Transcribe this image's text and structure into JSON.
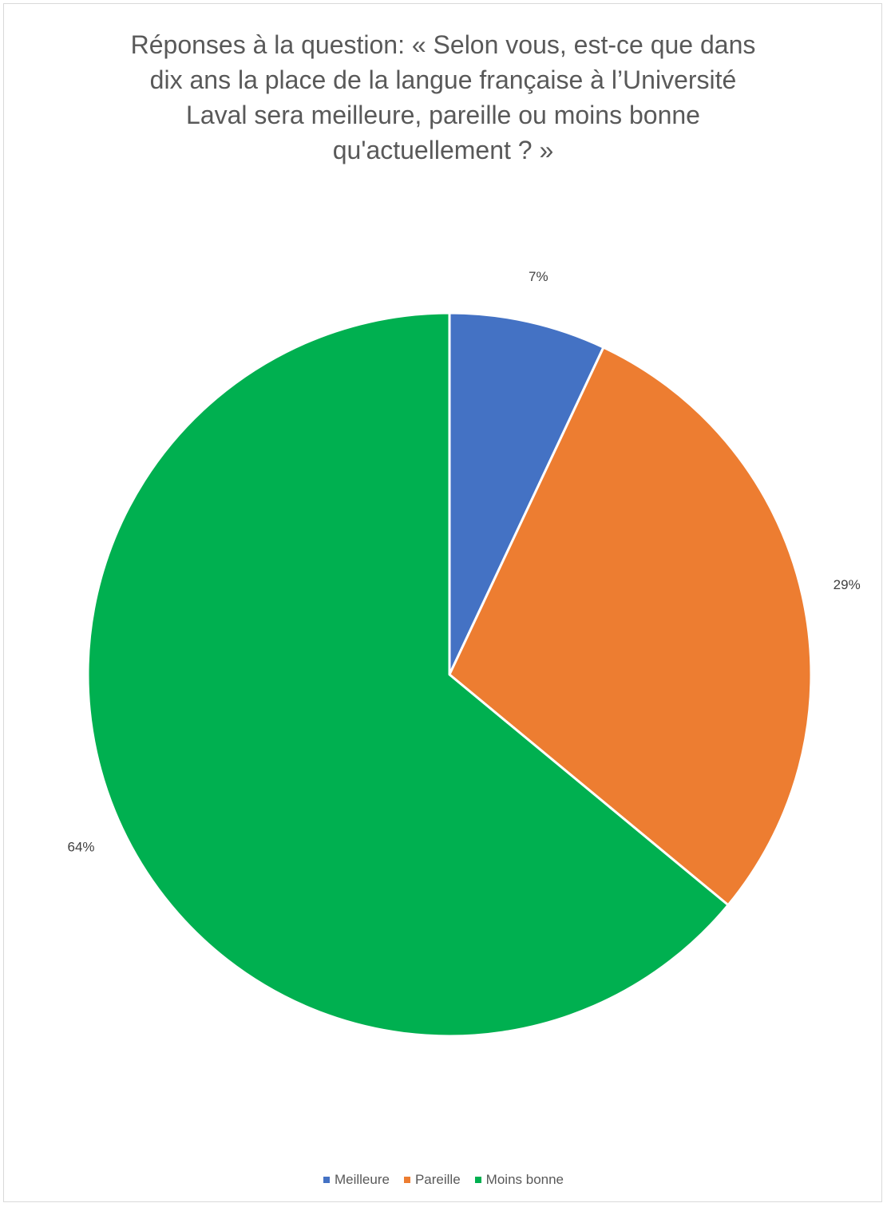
{
  "chart_data": {
    "type": "pie",
    "title": "Réponses à la question: « Selon vous, est-ce que dans\ndix ans la place de la langue française à l’Université\nLaval sera meilleure, pareille ou moins bonne\nqu'actuellement ? »",
    "categories": [
      "Meilleure",
      "Pareille",
      "Moins bonne"
    ],
    "values": [
      7,
      29,
      64
    ],
    "data_labels": [
      "7%",
      "29%",
      "64%"
    ],
    "colors": [
      "#4472c4",
      "#ed7d31",
      "#00b050"
    ],
    "legend_position": "bottom"
  },
  "legend": {
    "items": [
      {
        "label": "Meilleure",
        "color": "#4472c4"
      },
      {
        "label": "Pareille",
        "color": "#ed7d31"
      },
      {
        "label": "Moins bonne",
        "color": "#00b050"
      }
    ]
  }
}
